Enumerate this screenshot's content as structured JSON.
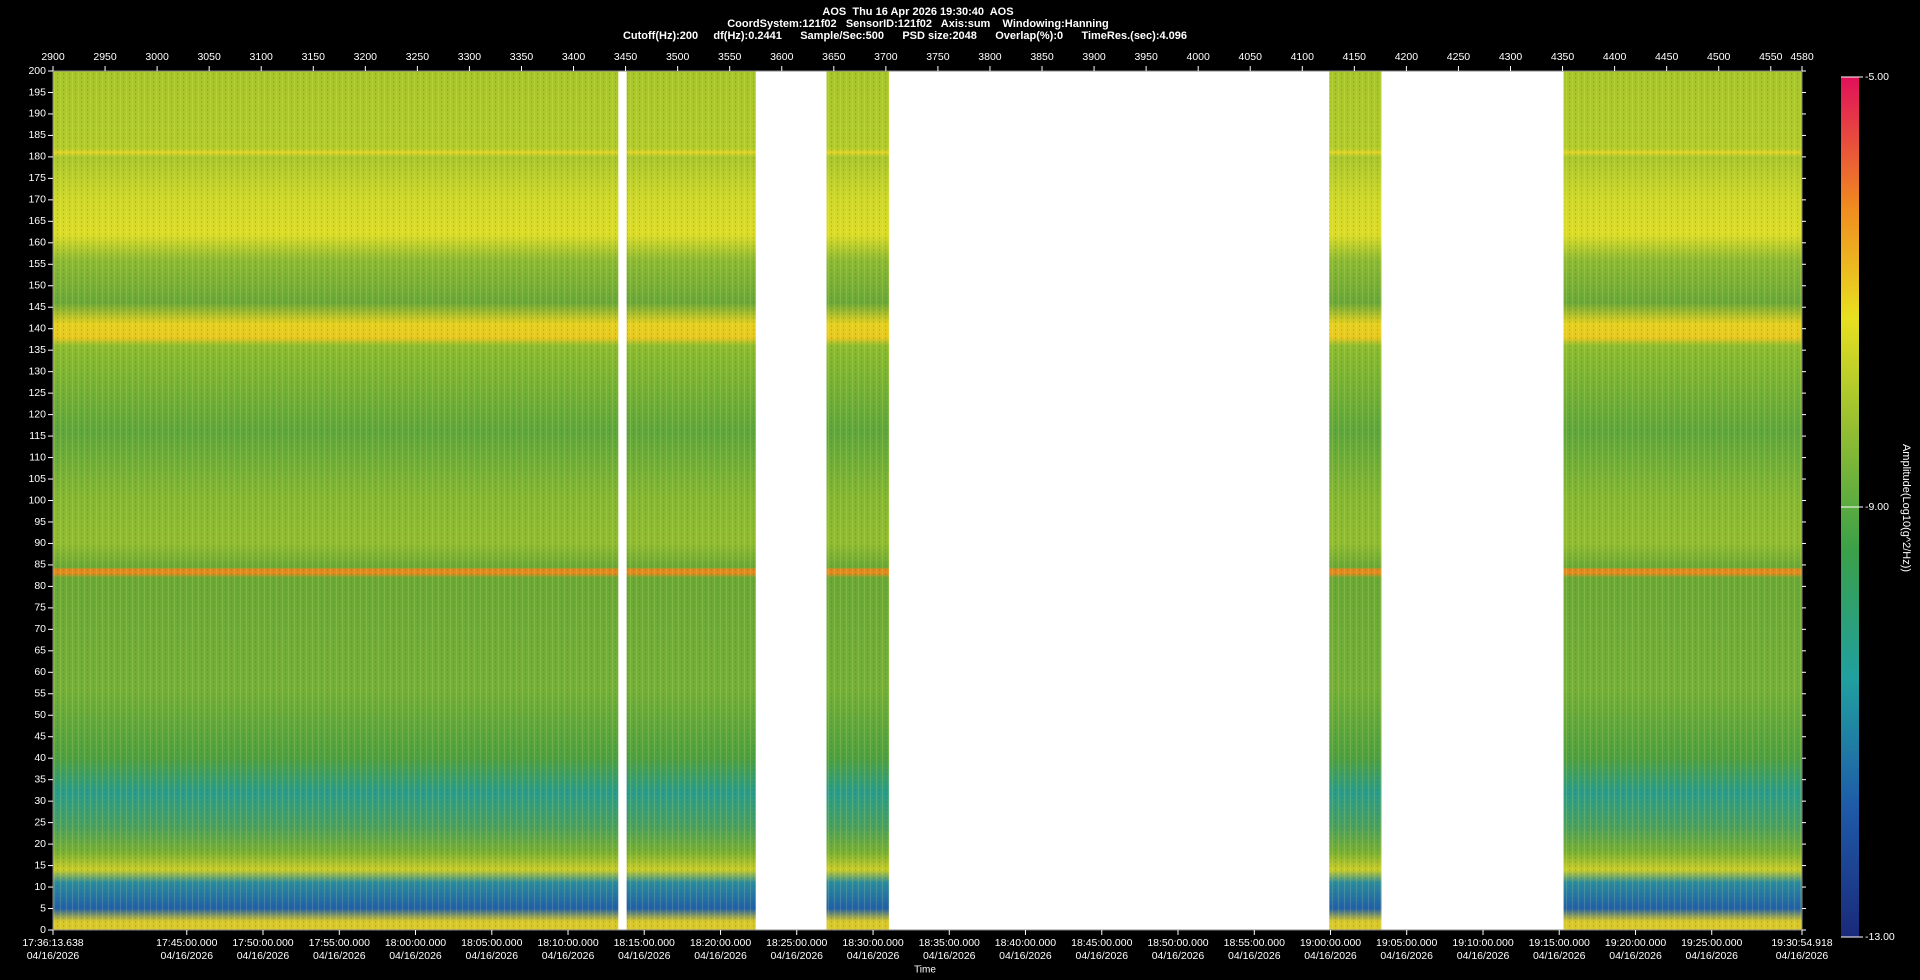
{
  "chart_data": {
    "type": "spectrogram",
    "title": "AOS  Thu 16 Apr 2026 19:30:40  AOS",
    "subtitle": "CoordSystem:121f02   SensorID:121f02   Axis:sum    Windowing:Hanning",
    "subtitle2": "Cutoff(Hz):200     df(Hz):0.2441      Sample/Sec:500      PSD size:2048      Overlap(%):0      TimeRes.(sec):4.096",
    "xlabel": "Time",
    "colorbar_label": "Amplitude(Log10(g^2/Hz))",
    "xlim": [
      2900,
      4580
    ],
    "xticks": [
      2900,
      2950,
      3000,
      3050,
      3100,
      3150,
      3200,
      3250,
      3300,
      3350,
      3400,
      3450,
      3500,
      3550,
      3600,
      3650,
      3700,
      3750,
      3800,
      3850,
      3900,
      3950,
      4000,
      4050,
      4100,
      4150,
      4200,
      4250,
      4300,
      4350,
      4400,
      4450,
      4500,
      4550,
      4580
    ],
    "ylim": [
      0,
      200
    ],
    "yticks": [
      0,
      5,
      10,
      15,
      20,
      25,
      30,
      35,
      40,
      45,
      50,
      55,
      60,
      65,
      70,
      75,
      80,
      85,
      90,
      95,
      100,
      105,
      110,
      115,
      120,
      125,
      130,
      135,
      140,
      145,
      150,
      155,
      160,
      165,
      170,
      175,
      180,
      185,
      190,
      195,
      200
    ],
    "time_ticks": [
      {
        "value": 2900,
        "label": "17:36:13.638"
      },
      {
        "value": 3028.5,
        "label": "17:45:00.000"
      },
      {
        "value": 3101.7,
        "label": "17:50:00.000"
      },
      {
        "value": 3175.0,
        "label": "17:55:00.000"
      },
      {
        "value": 3248.2,
        "label": "18:00:00.000"
      },
      {
        "value": 3321.5,
        "label": "18:05:00.000"
      },
      {
        "value": 3394.7,
        "label": "18:10:00.000"
      },
      {
        "value": 3467.9,
        "label": "18:15:00.000"
      },
      {
        "value": 3541.2,
        "label": "18:20:00.000"
      },
      {
        "value": 3614.4,
        "label": "18:25:00.000"
      },
      {
        "value": 3687.7,
        "label": "18:30:00.000"
      },
      {
        "value": 3760.9,
        "label": "18:35:00.000"
      },
      {
        "value": 3834.1,
        "label": "18:40:00.000"
      },
      {
        "value": 3907.4,
        "label": "18:45:00.000"
      },
      {
        "value": 3980.6,
        "label": "18:50:00.000"
      },
      {
        "value": 4053.9,
        "label": "18:55:00.000"
      },
      {
        "value": 4127.1,
        "label": "19:00:00.000"
      },
      {
        "value": 4200.3,
        "label": "19:05:00.000"
      },
      {
        "value": 4273.6,
        "label": "19:10:00.000"
      },
      {
        "value": 4346.8,
        "label": "19:15:00.000"
      },
      {
        "value": 4420.1,
        "label": "19:20:00.000"
      },
      {
        "value": 4493.3,
        "label": "19:25:00.000"
      },
      {
        "value": 4580,
        "label": "19:30:54.918"
      }
    ],
    "time_tick_dates": [
      "04/16/2026",
      "04/16/2026",
      "04/16/2026",
      "04/16/2026",
      "04/16/2026",
      "04/16/2026",
      "04/16/2026",
      "04/16/2026",
      "04/16/2026",
      "04/16/2026",
      "04/16/2026",
      "04/16/2026",
      "04/16/2026",
      "04/16/2026",
      "04/16/2026",
      "04/16/2026",
      "04/16/2026",
      "04/16/2026",
      "04/16/2026",
      "04/16/2026",
      "04/16/2026",
      "04/16/2026",
      "04/16/2026"
    ],
    "segments": [
      [
        2900,
        3443
      ],
      [
        3451,
        3575
      ],
      [
        3643,
        3703
      ],
      [
        4126,
        4176
      ],
      [
        4351,
        4580
      ]
    ],
    "clim": [
      -13,
      -5
    ],
    "cticks": [
      {
        "value": -13,
        "label": "-13.00"
      },
      {
        "value": -9,
        "label": "-9.00"
      },
      {
        "value": -5,
        "label": "-5.00"
      }
    ]
  }
}
